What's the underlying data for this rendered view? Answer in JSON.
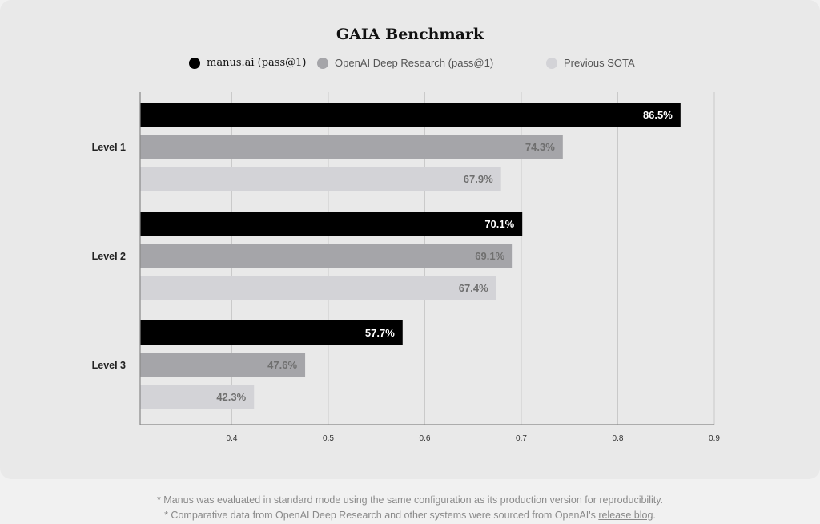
{
  "chart_data": {
    "type": "bar",
    "orientation": "horizontal",
    "title": "GAIA Benchmark",
    "categories": [
      "Level 1",
      "Level 2",
      "Level 3"
    ],
    "series": [
      {
        "name": "manus.ai (pass@1)",
        "color": "#000000",
        "values": [
          0.865,
          0.701,
          0.577
        ],
        "labels": [
          "86.5%",
          "70.1%",
          "57.7%"
        ]
      },
      {
        "name": "OpenAI Deep Research (pass@1)",
        "color": "#a5a5a9",
        "values": [
          0.743,
          0.691,
          0.476
        ],
        "labels": [
          "74.3%",
          "69.1%",
          "47.6%"
        ]
      },
      {
        "name": "Previous SOTA",
        "color": "#d3d3d7",
        "values": [
          0.679,
          0.674,
          0.423
        ],
        "labels": [
          "67.9%",
          "67.4%",
          "42.3%"
        ]
      }
    ],
    "xticks": [
      "0.4",
      "0.5",
      "0.6",
      "0.7",
      "0.8",
      "0.9"
    ],
    "xlim": [
      0.305,
      0.9
    ],
    "grid": true,
    "legend_position": "top"
  },
  "footnotes": {
    "line1": "* Manus was evaluated in standard mode using the same configuration as its production version for reproducibility.",
    "line2_prefix": "* Comparative data from OpenAI Deep Research and other systems were sourced from OpenAI's ",
    "line2_link": "release blog",
    "line2_suffix": "."
  }
}
